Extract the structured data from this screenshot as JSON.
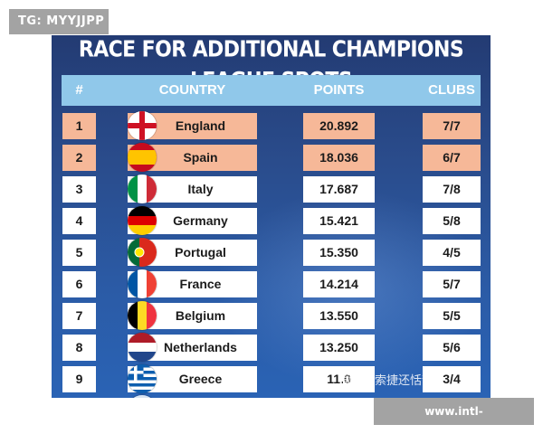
{
  "corner_badge": "TG: MYYJJPP",
  "title": "RACE FOR ADDITIONAL CHAMPIONS LEAGUE SPOTS",
  "headers": {
    "rank": "#",
    "country": "COUNTRY",
    "points": "POINTS",
    "clubs": "CLUBS"
  },
  "rows": [
    {
      "rank": "1",
      "country": "England",
      "points": "20.892",
      "clubs": "7/7",
      "highlighted": true,
      "flag_icon": "england-flag-icon"
    },
    {
      "rank": "2",
      "country": "Spain",
      "points": "18.036",
      "clubs": "6/7",
      "highlighted": true,
      "flag_icon": "spain-flag-icon"
    },
    {
      "rank": "3",
      "country": "Italy",
      "points": "17.687",
      "clubs": "7/8",
      "highlighted": false,
      "flag_icon": "italy-flag-icon"
    },
    {
      "rank": "4",
      "country": "Germany",
      "points": "15.421",
      "clubs": "5/8",
      "highlighted": false,
      "flag_icon": "germany-flag-icon"
    },
    {
      "rank": "5",
      "country": "Portugal",
      "points": "15.350",
      "clubs": "4/5",
      "highlighted": false,
      "flag_icon": "portugal-flag-icon"
    },
    {
      "rank": "6",
      "country": "France",
      "points": "14.214",
      "clubs": "5/7",
      "highlighted": false,
      "flag_icon": "france-flag-icon"
    },
    {
      "rank": "7",
      "country": "Belgium",
      "points": "13.550",
      "clubs": "5/5",
      "highlighted": false,
      "flag_icon": "belgium-flag-icon"
    },
    {
      "rank": "8",
      "country": "Netherlands",
      "points": "13.250",
      "clubs": "5/6",
      "highlighted": false,
      "flag_icon": "netherlands-flag-icon"
    },
    {
      "rank": "9",
      "country": "Greece",
      "points": "11.0",
      "clubs": "3/4",
      "highlighted": false,
      "flag_icon": "greece-flag-icon"
    }
  ],
  "watermark_text": "微信搜索捷还恬静",
  "site_badge": "www.intl-kaiyunsports.net",
  "colors": {
    "highlight": "#f6b898",
    "header_bar": "#90c8ea",
    "background": "#2a4c8c"
  }
}
